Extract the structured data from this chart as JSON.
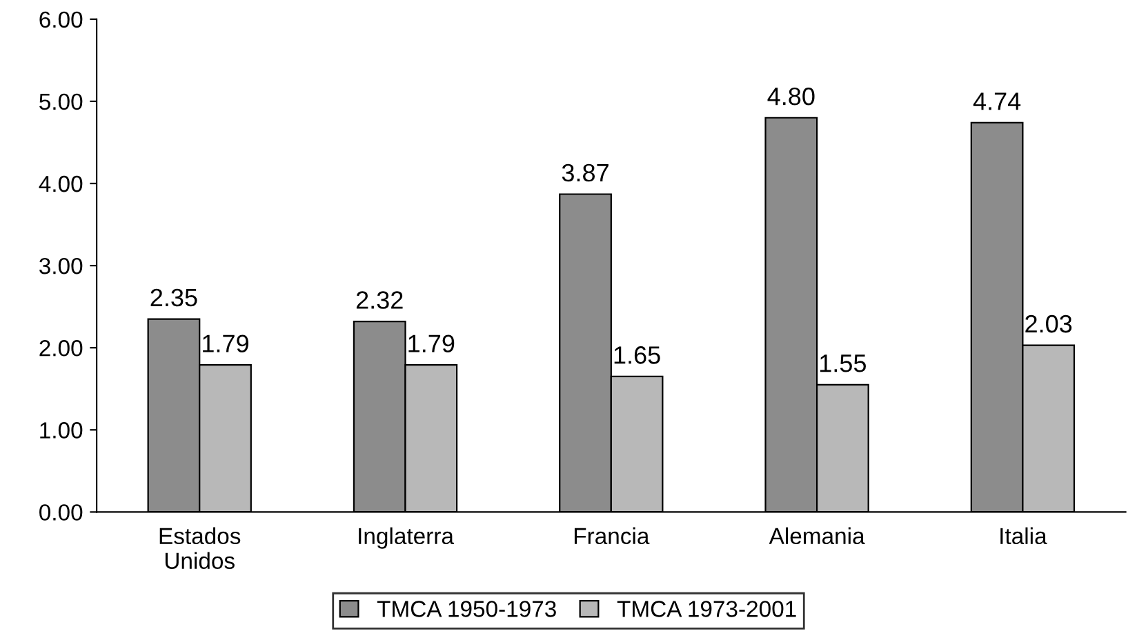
{
  "chart_data": {
    "type": "bar",
    "categories": [
      "Estados\nUnidos",
      "Inglaterra",
      "Francia",
      "Alemania",
      "Italia"
    ],
    "series": [
      {
        "name": "TMCA 1950-1973",
        "color": "#8c8c8c",
        "values": [
          2.35,
          2.32,
          3.87,
          4.8,
          4.74
        ],
        "value_labels": [
          "2.35",
          "2.32",
          "3.87",
          "4.80",
          "4.74"
        ]
      },
      {
        "name": "TMCA 1973-2001",
        "color": "#b8b8b8",
        "values": [
          1.79,
          1.79,
          1.65,
          1.55,
          2.03
        ],
        "value_labels": [
          "1.79",
          "1.79",
          "1.65",
          "1.55",
          "2.03"
        ]
      }
    ],
    "ylim": [
      0,
      6
    ],
    "yticks": [
      {
        "value": 0,
        "label": "0.00"
      },
      {
        "value": 1,
        "label": "1.00"
      },
      {
        "value": 2,
        "label": "2.00"
      },
      {
        "value": 3,
        "label": "3.00"
      },
      {
        "value": 4,
        "label": "4.00"
      },
      {
        "value": 5,
        "label": "5.00"
      },
      {
        "value": 6,
        "label": "6.00"
      }
    ],
    "grid": false,
    "legend": "bottom"
  }
}
